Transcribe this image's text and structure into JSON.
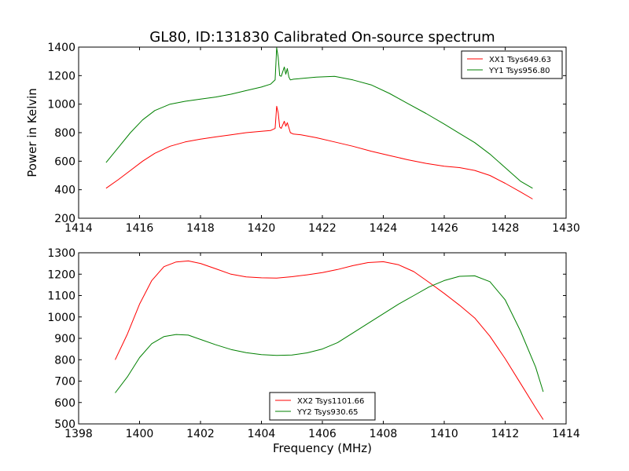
{
  "chart_data": [
    {
      "type": "line",
      "title": "GL80, ID:131830 Calibrated On-source spectrum",
      "xlabel": "",
      "ylabel": "Power in Kelvin",
      "xlim": [
        1414,
        1430
      ],
      "ylim": [
        200,
        1400
      ],
      "xticks": [
        1414,
        1416,
        1418,
        1420,
        1422,
        1424,
        1426,
        1428,
        1430
      ],
      "yticks": [
        200,
        400,
        600,
        800,
        1000,
        1200,
        1400
      ],
      "legend_position": "top-right",
      "grid": false,
      "series": [
        {
          "name": "XX1 Tsys649.63",
          "color": "#ff0000",
          "x": [
            1414.9,
            1415.3,
            1415.7,
            1416.1,
            1416.5,
            1417.0,
            1417.5,
            1418.0,
            1418.5,
            1419.0,
            1419.5,
            1420.0,
            1420.3,
            1420.45,
            1420.5,
            1420.55,
            1420.6,
            1420.65,
            1420.75,
            1420.8,
            1420.85,
            1420.9,
            1420.95,
            1421.05,
            1421.3,
            1421.8,
            1422.4,
            1423.0,
            1423.6,
            1424.2,
            1424.8,
            1425.4,
            1426.0,
            1426.5,
            1427.0,
            1427.5,
            1428.0,
            1428.5,
            1428.9
          ],
          "y": [
            410,
            470,
            535,
            600,
            655,
            705,
            735,
            755,
            770,
            785,
            800,
            810,
            815,
            830,
            985,
            940,
            840,
            830,
            880,
            845,
            870,
            835,
            800,
            790,
            785,
            765,
            735,
            705,
            670,
            640,
            610,
            585,
            565,
            555,
            535,
            500,
            445,
            385,
            335
          ]
        },
        {
          "name": "YY1 Tsys956.80",
          "color": "#008000",
          "x": [
            1414.9,
            1415.3,
            1415.7,
            1416.1,
            1416.5,
            1417.0,
            1417.5,
            1418.0,
            1418.5,
            1419.0,
            1419.5,
            1420.0,
            1420.3,
            1420.45,
            1420.5,
            1420.55,
            1420.6,
            1420.65,
            1420.75,
            1420.8,
            1420.85,
            1420.9,
            1420.95,
            1421.05,
            1421.3,
            1421.8,
            1422.4,
            1423.0,
            1423.6,
            1424.2,
            1424.8,
            1425.4,
            1426.0,
            1426.5,
            1427.0,
            1427.5,
            1428.0,
            1428.5,
            1428.9
          ],
          "y": [
            590,
            695,
            800,
            890,
            955,
            1000,
            1020,
            1035,
            1050,
            1070,
            1095,
            1120,
            1140,
            1170,
            1395,
            1330,
            1200,
            1195,
            1260,
            1210,
            1250,
            1190,
            1170,
            1175,
            1180,
            1190,
            1195,
            1170,
            1135,
            1075,
            1005,
            935,
            860,
            795,
            730,
            650,
            555,
            460,
            410
          ]
        }
      ]
    },
    {
      "type": "line",
      "title": "",
      "xlabel": "Frequency (MHz)",
      "ylabel": "",
      "xlim": [
        1398,
        1414
      ],
      "ylim": [
        500,
        1300
      ],
      "xticks": [
        1398,
        1400,
        1402,
        1404,
        1406,
        1408,
        1410,
        1412,
        1414
      ],
      "yticks": [
        500,
        600,
        700,
        800,
        900,
        1000,
        1100,
        1200,
        1300
      ],
      "legend_position": "bottom-center",
      "grid": false,
      "series": [
        {
          "name": "XX2 Tsys1101.66",
          "color": "#ff0000",
          "x": [
            1399.2,
            1399.6,
            1400.0,
            1400.4,
            1400.8,
            1401.2,
            1401.6,
            1402.0,
            1402.5,
            1403.0,
            1403.5,
            1404.0,
            1404.5,
            1405.0,
            1405.5,
            1406.0,
            1406.5,
            1407.0,
            1407.5,
            1408.0,
            1408.5,
            1409.0,
            1409.5,
            1410.0,
            1410.5,
            1411.0,
            1411.5,
            1412.0,
            1412.5,
            1413.0,
            1413.25
          ],
          "y": [
            800,
            920,
            1060,
            1170,
            1235,
            1257,
            1262,
            1250,
            1225,
            1200,
            1187,
            1183,
            1182,
            1188,
            1197,
            1207,
            1222,
            1240,
            1254,
            1258,
            1244,
            1212,
            1162,
            1110,
            1055,
            995,
            910,
            805,
            690,
            575,
            520
          ]
        },
        {
          "name": "YY2 Tsys930.65",
          "color": "#008000",
          "x": [
            1399.2,
            1399.6,
            1400.0,
            1400.4,
            1400.8,
            1401.2,
            1401.6,
            1402.0,
            1402.5,
            1403.0,
            1403.5,
            1404.0,
            1404.5,
            1405.0,
            1405.5,
            1406.0,
            1406.5,
            1407.0,
            1407.5,
            1408.0,
            1408.5,
            1409.0,
            1409.5,
            1410.0,
            1410.5,
            1411.0,
            1411.5,
            1412.0,
            1412.5,
            1413.0,
            1413.25
          ],
          "y": [
            645,
            720,
            810,
            875,
            908,
            918,
            915,
            895,
            870,
            848,
            833,
            824,
            820,
            822,
            832,
            850,
            880,
            925,
            970,
            1015,
            1060,
            1100,
            1140,
            1170,
            1190,
            1192,
            1165,
            1080,
            935,
            765,
            650
          ]
        }
      ]
    }
  ]
}
